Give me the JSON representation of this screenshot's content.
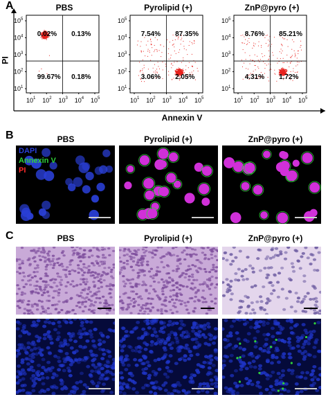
{
  "panels": {
    "a": "A",
    "b": "B",
    "c": "C"
  },
  "flow": {
    "y_axis_label": "PI",
    "x_axis_label": "Annexin V",
    "plots": [
      {
        "title": "PBS",
        "quadrants": {
          "ul": "0.02%",
          "ur": "0.13%",
          "ll": "99.67%",
          "lr": "0.18%"
        }
      },
      {
        "title": "Pyrolipid (+)",
        "quadrants": {
          "ul": "7.54%",
          "ur": "87.35%",
          "ll": "3.06%",
          "lr": "2.05%"
        }
      },
      {
        "title": "ZnP@pyro (+)",
        "quadrants": {
          "ul": "8.76%",
          "ur": "85.21%",
          "ll": "4.31%",
          "lr": "1.72%"
        }
      }
    ],
    "tick_base": "10",
    "y_exponents": [
      "5",
      "4",
      "3",
      "2",
      "1"
    ],
    "x_exponents": [
      "1",
      "2",
      "3",
      "4",
      "5"
    ]
  },
  "confocal": {
    "titles": [
      "PBS",
      "Pyrolipid (+)",
      "ZnP@pyro (+)"
    ],
    "legend": {
      "dapi": "DAPI",
      "annexin": "Annexin V",
      "pi": "PI"
    }
  },
  "histology": {
    "titles": [
      "PBS",
      "Pyrolipid (+)",
      "ZnP@pyro (+)"
    ]
  },
  "colors": {
    "dot_red": "#e8231f",
    "dapi_blue": "#2a3fd6",
    "annexin_green": "#2fd23a",
    "pi_red": "#ff2a2a",
    "he_purple": "#b58bc8"
  }
}
